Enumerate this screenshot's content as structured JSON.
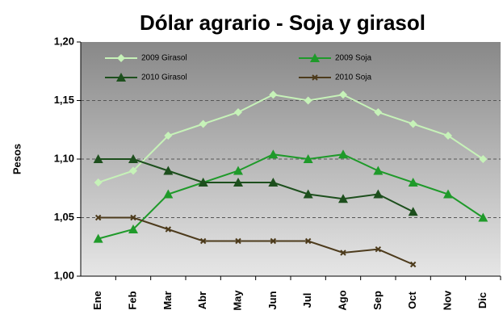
{
  "chart_data": {
    "type": "line",
    "title": "Dólar agrario - Soja y girasol",
    "y_label": "Pesos",
    "categories": [
      "Ene",
      "Feb",
      "Mar",
      "Abr",
      "May",
      "Jun",
      "Jul",
      "Ago",
      "Sep",
      "Oct",
      "Nov",
      "Dic"
    ],
    "series": [
      {
        "name": "2009 Girasol",
        "color": "#c6f2b8",
        "marker": "diamond",
        "values": [
          1.08,
          1.09,
          1.12,
          1.13,
          1.14,
          1.155,
          1.15,
          1.155,
          1.14,
          1.13,
          1.12,
          1.1
        ]
      },
      {
        "name": "2009 Soja",
        "color": "#1f9a2a",
        "marker": "triangle",
        "values": [
          1.032,
          1.04,
          1.07,
          1.08,
          1.09,
          1.104,
          1.1,
          1.104,
          1.09,
          1.08,
          1.07,
          1.05
        ]
      },
      {
        "name": "2010 Girasol",
        "color": "#1d4f1d",
        "marker": "triangle",
        "values": [
          1.1,
          1.1,
          1.09,
          1.08,
          1.08,
          1.08,
          1.07,
          1.066,
          1.07,
          1.055,
          null,
          null
        ]
      },
      {
        "name": "2010 Soja",
        "color": "#4d3b1c",
        "marker": "x",
        "values": [
          1.05,
          1.05,
          1.04,
          1.03,
          1.03,
          1.03,
          1.03,
          1.02,
          1.023,
          1.01,
          null,
          null
        ]
      }
    ],
    "ylim": [
      1.0,
      1.2
    ],
    "yticks": [
      {
        "value": 1.0,
        "label": "1,00"
      },
      {
        "value": 1.05,
        "label": "1,05"
      },
      {
        "value": 1.1,
        "label": "1,10"
      },
      {
        "value": 1.15,
        "label": "1,15"
      },
      {
        "value": 1.2,
        "label": "1,20"
      }
    ],
    "grid": true,
    "legend": "top"
  }
}
